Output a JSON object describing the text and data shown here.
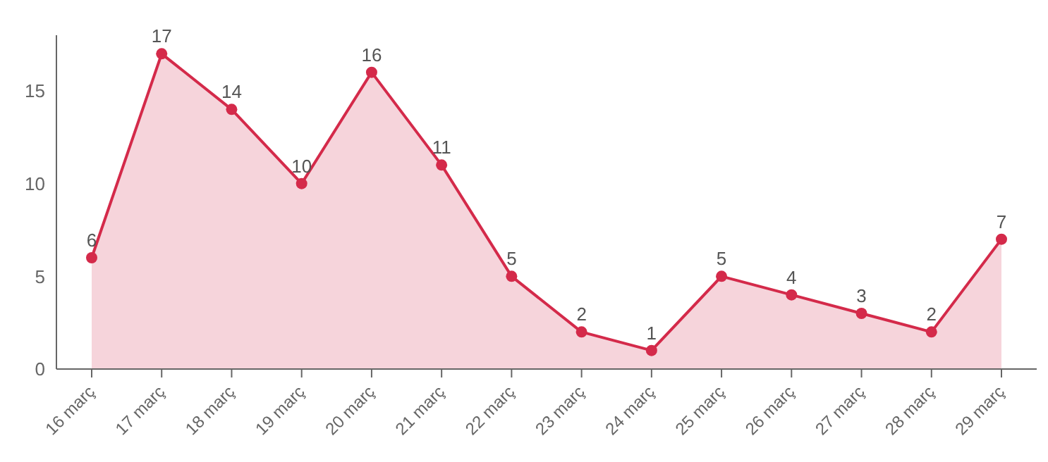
{
  "chart_data": {
    "type": "area",
    "categories": [
      "16 març",
      "17 març",
      "18 març",
      "19 març",
      "20 març",
      "21 març",
      "22 març",
      "23 març",
      "24 març",
      "25 març",
      "26 març",
      "27 març",
      "28 març",
      "29 març"
    ],
    "series": [
      {
        "color": "#d42a4a",
        "values": [
          6,
          17,
          14,
          10,
          16,
          11,
          5,
          2,
          1,
          5,
          4,
          3,
          2,
          7
        ]
      }
    ],
    "ylim": [
      0,
      18
    ],
    "yticks": [
      0,
      5,
      10,
      15
    ],
    "marker": "circle",
    "data_labels": true
  }
}
